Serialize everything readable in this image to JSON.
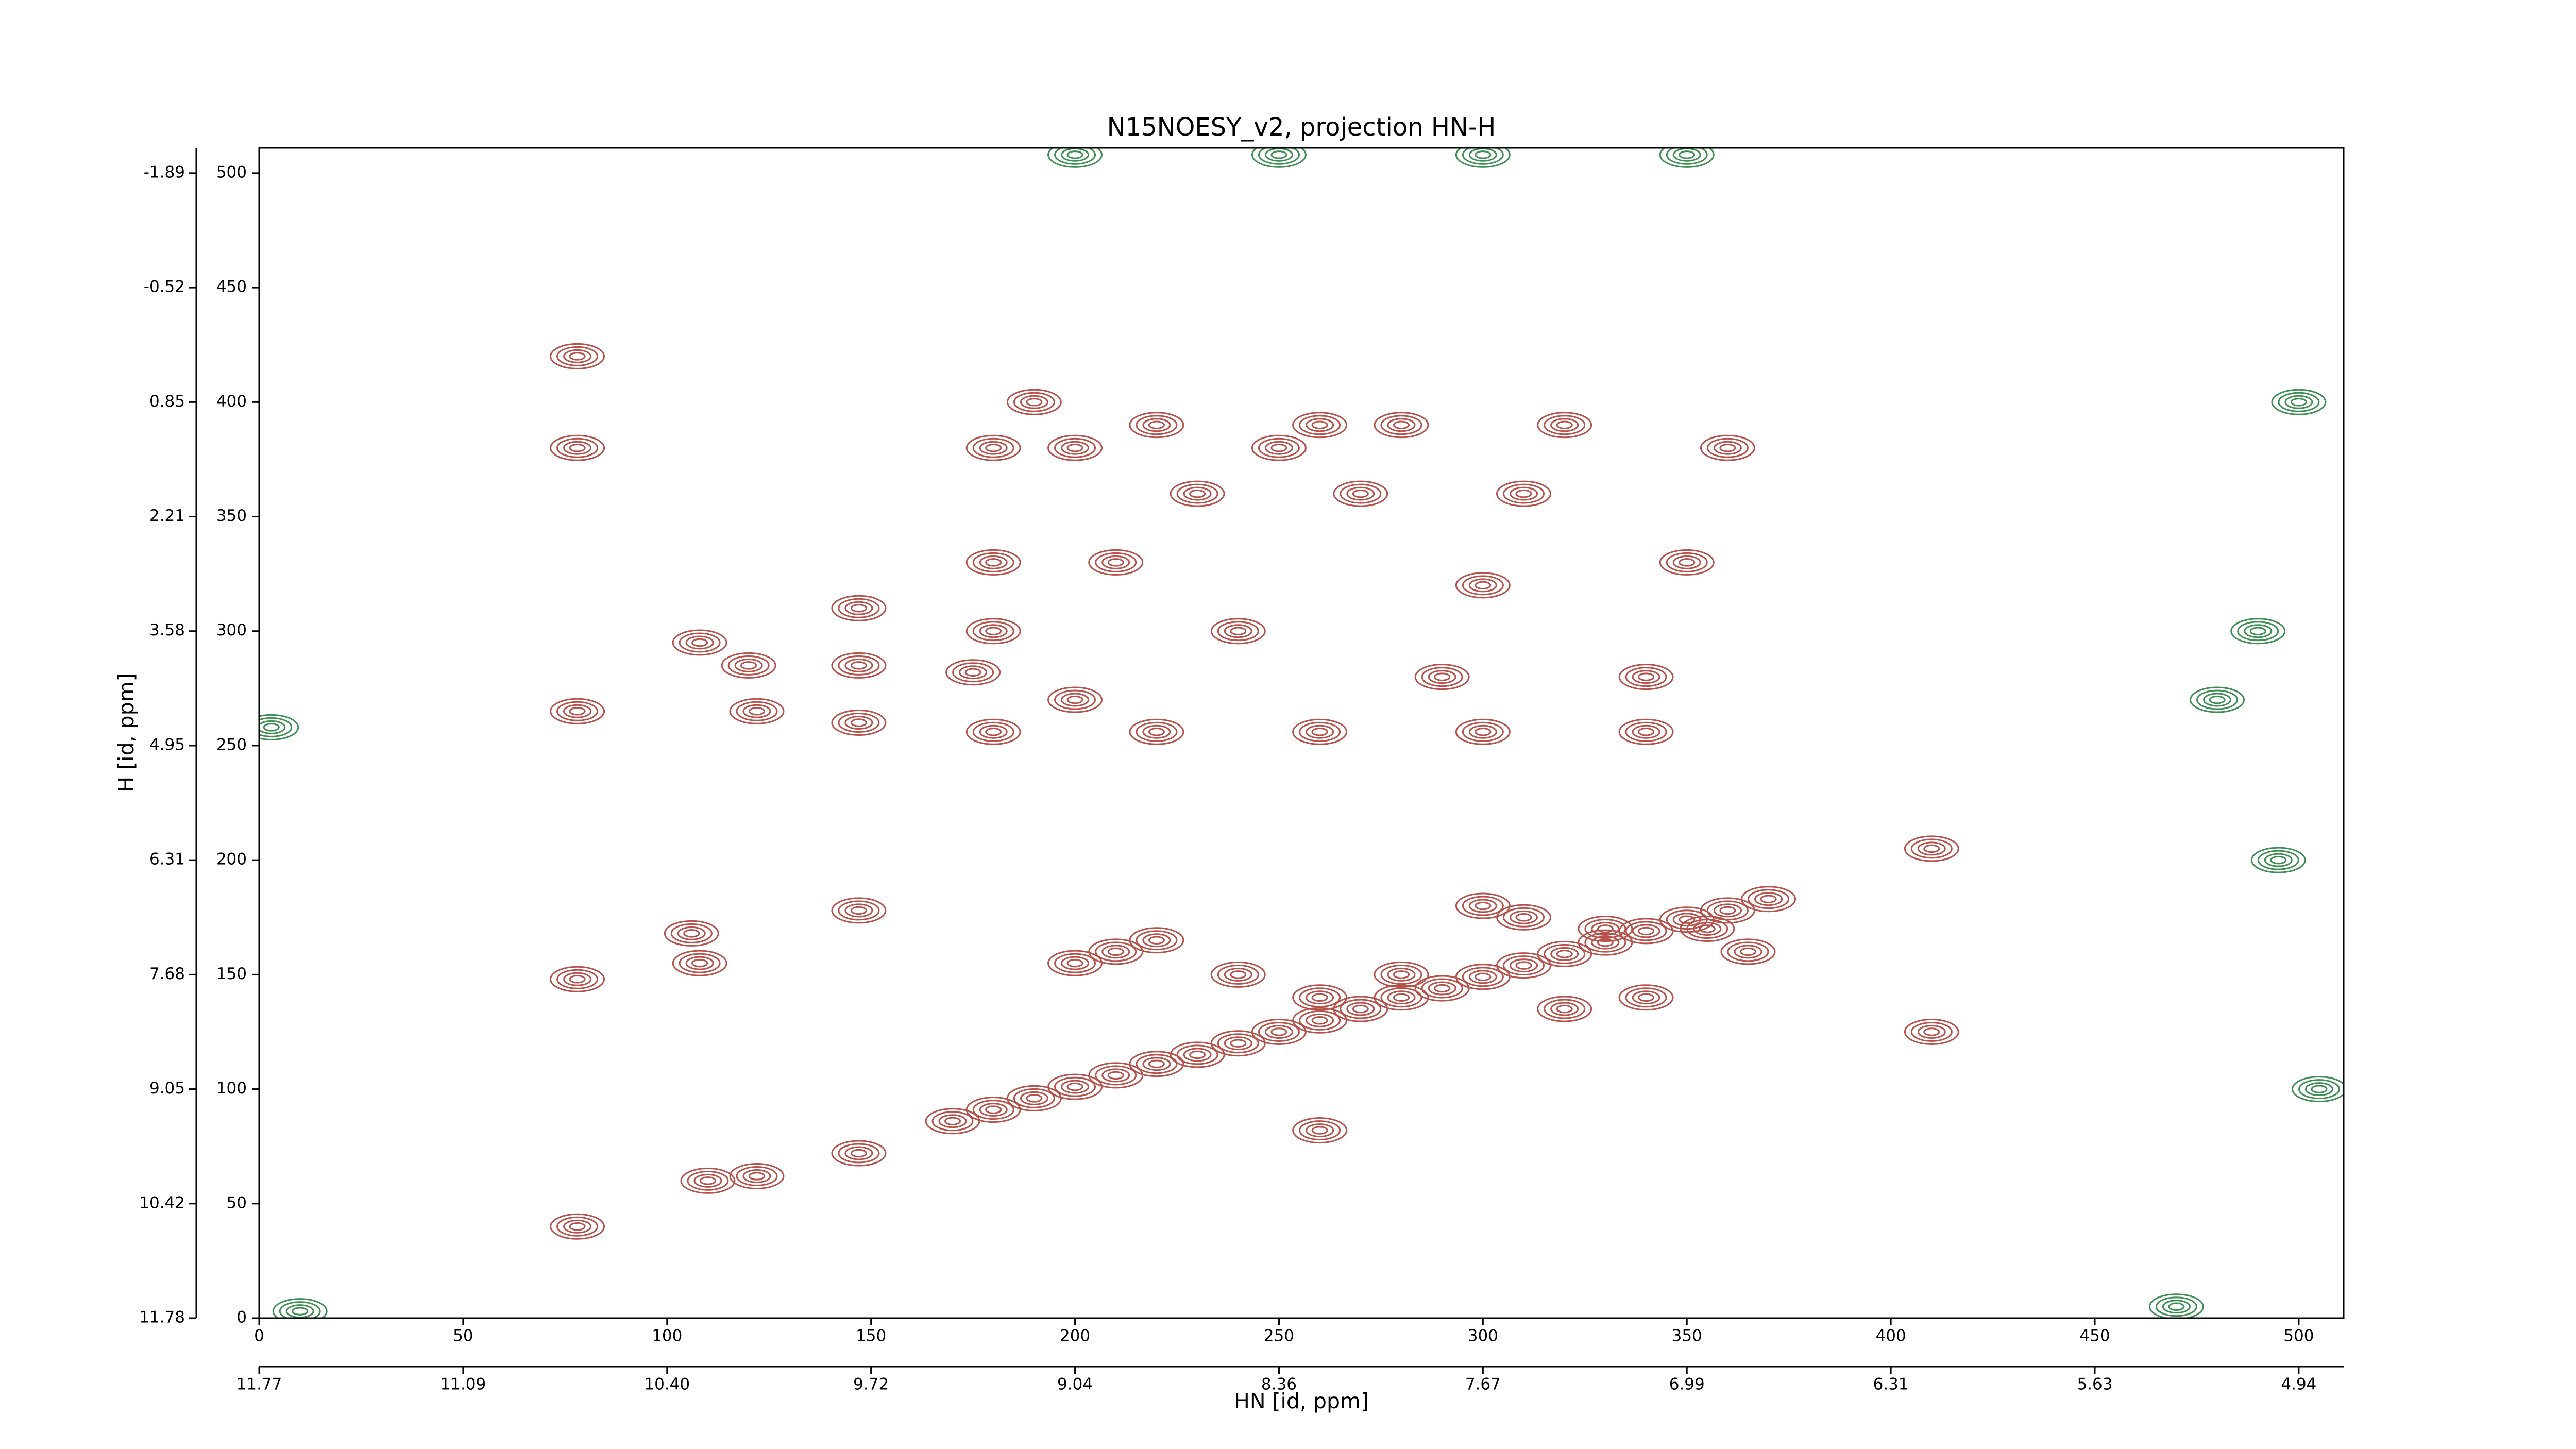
{
  "chart_data": {
    "type": "contour",
    "title": "N15NOESY_v2, projection HN-H",
    "x_label": "HN [id, ppm]",
    "y_label": "H [id, ppm]",
    "xlim": [
      0,
      511
    ],
    "ylim": [
      0,
      511
    ],
    "xticks": [
      0,
      50,
      100,
      150,
      200,
      250,
      300,
      350,
      400,
      450,
      500
    ],
    "yticks": [
      0,
      50,
      100,
      150,
      200,
      250,
      300,
      350,
      400,
      450,
      500
    ],
    "x2ticks": [
      {
        "value": 0,
        "label": "11.77"
      },
      {
        "value": 50,
        "label": "11.09"
      },
      {
        "value": 100,
        "label": "10.40"
      },
      {
        "value": 150,
        "label": "9.72"
      },
      {
        "value": 200,
        "label": "9.04"
      },
      {
        "value": 250,
        "label": "8.36"
      },
      {
        "value": 300,
        "label": "7.67"
      },
      {
        "value": 350,
        "label": "6.99"
      },
      {
        "value": 400,
        "label": "6.31"
      },
      {
        "value": 450,
        "label": "5.63"
      },
      {
        "value": 500,
        "label": "4.94"
      }
    ],
    "y2ticks": [
      {
        "value": 0,
        "label": "11.78"
      },
      {
        "value": 50,
        "label": "10.42"
      },
      {
        "value": 100,
        "label": "9.05"
      },
      {
        "value": 150,
        "label": "7.68"
      },
      {
        "value": 200,
        "label": "6.31"
      },
      {
        "value": 250,
        "label": "4.95"
      },
      {
        "value": 300,
        "label": "3.58"
      },
      {
        "value": 350,
        "label": "2.21"
      },
      {
        "value": 400,
        "label": "0.85"
      },
      {
        "value": 450,
        "label": "-0.52"
      },
      {
        "value": 500,
        "label": "-1.89"
      }
    ],
    "series": [
      {
        "color": "#b5524c",
        "x": [
          170,
          180,
          190,
          200,
          210,
          220,
          230,
          240,
          250,
          260,
          270,
          280,
          290,
          300,
          310,
          320,
          330,
          340,
          350,
          360,
          370,
          78,
          110,
          122,
          147,
          106,
          108,
          78,
          147,
          108,
          120,
          147,
          147,
          78,
          122,
          147,
          78,
          78,
          175,
          180,
          180,
          180,
          190,
          200,
          200,
          210,
          220,
          230,
          240,
          250,
          260,
          270,
          280,
          290,
          300,
          310,
          320,
          340,
          350,
          360,
          355,
          365,
          300,
          310,
          330,
          280,
          260,
          240,
          210,
          200,
          320,
          340,
          410,
          410,
          260,
          220,
          180,
          220,
          260,
          300,
          340
        ],
        "y": [
          86,
          91,
          96,
          101,
          106,
          111,
          115,
          120,
          125,
          130,
          135,
          140,
          144,
          149,
          154,
          159,
          164,
          169,
          174,
          178,
          183,
          40,
          60,
          62,
          72,
          168,
          155,
          148,
          178,
          295,
          285,
          310,
          285,
          265,
          265,
          260,
          380,
          420,
          282,
          300,
          330,
          380,
          400,
          380,
          270,
          330,
          390,
          360,
          300,
          380,
          390,
          360,
          390,
          280,
          320,
          360,
          390,
          280,
          330,
          380,
          170,
          160,
          180,
          175,
          170,
          150,
          140,
          150,
          160,
          155,
          135,
          140,
          205,
          125,
          82,
          165,
          256,
          256,
          256,
          256,
          256
        ]
      },
      {
        "color": "#3f8f55",
        "x": [
          200,
          250,
          300,
          350,
          490,
          495,
          500,
          505,
          480,
          470,
          10,
          3
        ],
        "y": [
          508,
          508,
          508,
          508,
          300,
          200,
          400,
          100,
          270,
          5,
          3,
          258
        ]
      }
    ]
  }
}
